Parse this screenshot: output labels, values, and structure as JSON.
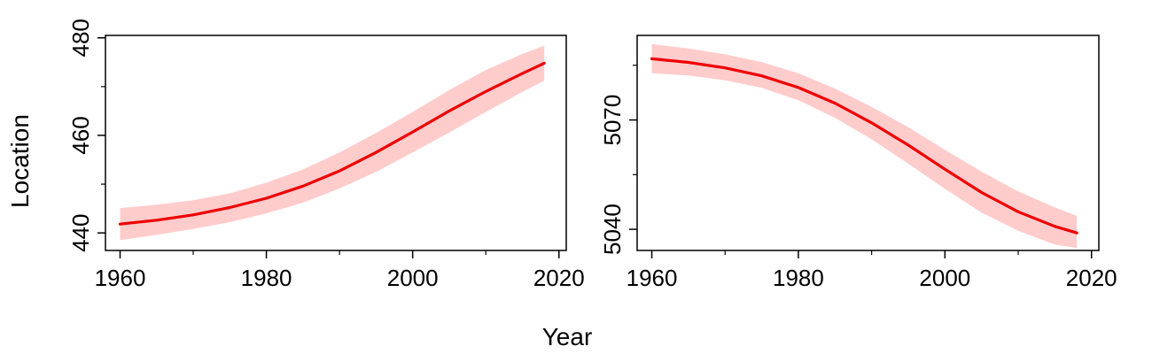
{
  "figure": {
    "xlabel": "Year",
    "ylabel": "Location"
  },
  "chart_data": [
    {
      "type": "line",
      "title": "",
      "xlabel": "",
      "ylabel": "",
      "xlim": [
        1958,
        2021
      ],
      "ylim": [
        436.4,
        480.5
      ],
      "xticks": [
        1960,
        1980,
        2000,
        2020
      ],
      "xminorticks": [
        1970,
        1990,
        2010
      ],
      "yticks": [
        440,
        460,
        480
      ],
      "yminorticks": [
        450,
        470
      ],
      "grid": false,
      "line_color": "#ee0000",
      "band_color": "#ffcccc",
      "series": [
        {
          "x": [
            1960,
            1965,
            1970,
            1975,
            1980,
            1985,
            1990,
            1995,
            2000,
            2005,
            2010,
            2015,
            2018
          ],
          "y": [
            441.8,
            442.6,
            443.7,
            445.2,
            447.1,
            449.6,
            452.7,
            456.5,
            460.7,
            465.0,
            469.0,
            472.7,
            474.8
          ],
          "lower": [
            438.5,
            439.6,
            440.8,
            442.2,
            444.0,
            446.2,
            449.1,
            452.5,
            456.5,
            460.6,
            464.8,
            468.9,
            471.2
          ],
          "upper": [
            445.1,
            445.8,
            446.7,
            448.1,
            450.3,
            453.0,
            456.5,
            460.5,
            464.8,
            469.3,
            473.4,
            476.7,
            478.4
          ]
        }
      ]
    },
    {
      "type": "line",
      "title": "",
      "xlabel": "",
      "ylabel": "",
      "xlim": [
        1958,
        2021
      ],
      "ylim": [
        5034.2,
        5093.2
      ],
      "xticks": [
        1960,
        1980,
        2000,
        2020
      ],
      "xminorticks": [
        1970,
        1990,
        2010
      ],
      "yticks": [
        5040,
        5070
      ],
      "yminorticks": [
        5055,
        5085
      ],
      "grid": false,
      "line_color": "#ee0000",
      "band_color": "#ffcccc",
      "series": [
        {
          "x": [
            1960,
            1965,
            1970,
            1975,
            1980,
            1985,
            1990,
            1995,
            2000,
            2005,
            2010,
            2015,
            2018
          ],
          "y": [
            5086.8,
            5085.8,
            5084.3,
            5082.1,
            5078.9,
            5074.6,
            5069.2,
            5063.1,
            5056.5,
            5050.1,
            5044.8,
            5040.8,
            5039.0
          ],
          "lower": [
            5082.8,
            5082.2,
            5080.9,
            5078.8,
            5075.4,
            5070.6,
            5064.7,
            5058.0,
            5051.1,
            5044.6,
            5039.6,
            5035.8,
            5034.9
          ],
          "upper": [
            5090.8,
            5089.6,
            5088.0,
            5085.9,
            5082.8,
            5078.6,
            5073.6,
            5068.0,
            5061.8,
            5055.8,
            5050.4,
            5046.0,
            5043.7
          ]
        }
      ]
    }
  ]
}
